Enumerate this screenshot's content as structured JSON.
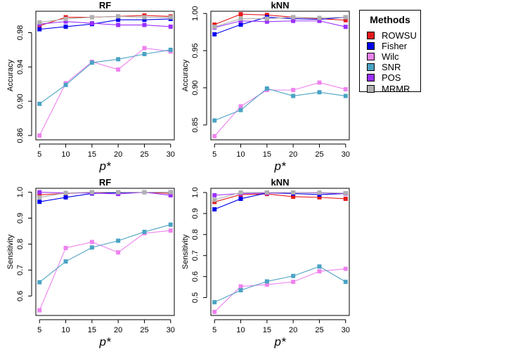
{
  "chart_data": [
    {
      "type": "line",
      "title": "RF",
      "xlabel": "p*",
      "ylabel": "Accuracy",
      "x": [
        5,
        10,
        15,
        20,
        25,
        30
      ],
      "ylim": [
        0.855,
        1.005
      ],
      "yticks": [
        0.86,
        0.9,
        0.94,
        0.98
      ],
      "yticklabels": [
        "0.86",
        "0.90",
        "0.94",
        "0.98"
      ],
      "series": [
        {
          "name": "ROWSU",
          "values": [
            0.988,
            0.998,
            0.998,
            0.999,
            1.0,
            0.999
          ]
        },
        {
          "name": "Fisher",
          "values": [
            0.984,
            0.987,
            0.99,
            0.995,
            0.995,
            0.996
          ]
        },
        {
          "name": "Wilc",
          "values": [
            0.86,
            0.921,
            0.946,
            0.937,
            0.962,
            0.958
          ]
        },
        {
          "name": "SNR",
          "values": [
            0.897,
            0.919,
            0.945,
            0.949,
            0.955,
            0.96
          ]
        },
        {
          "name": "POS",
          "values": [
            0.99,
            0.993,
            0.991,
            0.989,
            0.989,
            0.987
          ]
        },
        {
          "name": "MRMR",
          "values": [
            0.992,
            0.996,
            0.998,
            0.999,
            0.998,
            0.998
          ]
        }
      ]
    },
    {
      "type": "line",
      "title": "kNN",
      "xlabel": "p*",
      "ylabel": "Accuracy",
      "x": [
        5,
        10,
        15,
        20,
        25,
        30
      ],
      "ylim": [
        0.83,
        1.003
      ],
      "yticks": [
        0.85,
        0.9,
        0.95,
        1.0
      ],
      "yticklabels": [
        "0.85",
        "0.90",
        "0.95",
        "1.00"
      ],
      "series": [
        {
          "name": "ROWSU",
          "values": [
            0.985,
            0.999,
            0.998,
            0.995,
            0.993,
            0.991
          ]
        },
        {
          "name": "Fisher",
          "values": [
            0.972,
            0.985,
            0.995,
            0.993,
            0.992,
            0.995
          ]
        },
        {
          "name": "Wilc",
          "values": [
            0.835,
            0.875,
            0.897,
            0.897,
            0.907,
            0.898
          ]
        },
        {
          "name": "SNR",
          "values": [
            0.856,
            0.87,
            0.899,
            0.889,
            0.894,
            0.889
          ]
        },
        {
          "name": "POS",
          "values": [
            0.981,
            0.99,
            0.989,
            0.99,
            0.99,
            0.982
          ]
        },
        {
          "name": "MRMR",
          "values": [
            0.982,
            0.993,
            0.993,
            0.995,
            0.994,
            0.995
          ]
        }
      ]
    },
    {
      "type": "line",
      "title": "RF",
      "xlabel": "p*",
      "ylabel": "Sensitivity",
      "x": [
        5,
        10,
        15,
        20,
        25,
        30
      ],
      "ylim": [
        0.525,
        1.015
      ],
      "yticks": [
        0.6,
        0.7,
        0.8,
        0.9,
        1.0
      ],
      "yticklabels": [
        "0.6",
        "0.7",
        "0.8",
        "0.9",
        "1.0"
      ],
      "series": [
        {
          "name": "ROWSU",
          "values": [
            0.99,
            0.995,
            1.0,
            0.998,
            1.0,
            0.995
          ]
        },
        {
          "name": "Fisher",
          "values": [
            0.963,
            0.98,
            0.995,
            0.998,
            1.0,
            1.0
          ]
        },
        {
          "name": "Wilc",
          "values": [
            0.545,
            0.785,
            0.808,
            0.768,
            0.842,
            0.852
          ]
        },
        {
          "name": "SNR",
          "values": [
            0.653,
            0.733,
            0.787,
            0.813,
            0.847,
            0.875
          ]
        },
        {
          "name": "POS",
          "values": [
            1.0,
            0.997,
            0.997,
            0.993,
            1.0,
            0.988
          ]
        },
        {
          "name": "MRMR",
          "values": [
            0.98,
            0.997,
            1.0,
            1.0,
            1.0,
            1.0
          ]
        }
      ]
    },
    {
      "type": "line",
      "title": "kNN",
      "xlabel": "p*",
      "ylabel": "Sensitivity",
      "x": [
        5,
        10,
        15,
        20,
        25,
        30
      ],
      "ylim": [
        0.415,
        1.02
      ],
      "yticks": [
        0.5,
        0.6,
        0.7,
        0.8,
        0.9,
        1.0
      ],
      "yticklabels": [
        "0.5",
        "0.6",
        "0.7",
        "0.8",
        "0.9",
        "1.0"
      ],
      "series": [
        {
          "name": "ROWSU",
          "values": [
            0.955,
            0.99,
            0.993,
            0.98,
            0.977,
            0.97
          ]
        },
        {
          "name": "Fisher",
          "values": [
            0.92,
            0.97,
            0.998,
            0.995,
            0.99,
            0.995
          ]
        },
        {
          "name": "Wilc",
          "values": [
            0.432,
            0.553,
            0.562,
            0.575,
            0.625,
            0.637
          ]
        },
        {
          "name": "SNR",
          "values": [
            0.478,
            0.535,
            0.577,
            0.603,
            0.648,
            0.575
          ]
        },
        {
          "name": "POS",
          "values": [
            0.987,
            0.995,
            0.997,
            1.0,
            0.998,
            0.995
          ]
        },
        {
          "name": "MRMR",
          "values": [
            0.965,
            1.0,
            1.0,
            1.0,
            1.0,
            0.997
          ]
        }
      ]
    }
  ],
  "legend": {
    "title": "Methods",
    "items": [
      {
        "name": "ROWSU",
        "color": "#e41a1c"
      },
      {
        "name": "Fisher",
        "color": "#0000ee"
      },
      {
        "name": "Wilc",
        "color": "#ee82ee"
      },
      {
        "name": "SNR",
        "color": "#4ba3c3"
      },
      {
        "name": "POS",
        "color": "#9b30ff"
      },
      {
        "name": "MRMR",
        "color": "#b0b0b0"
      }
    ]
  }
}
